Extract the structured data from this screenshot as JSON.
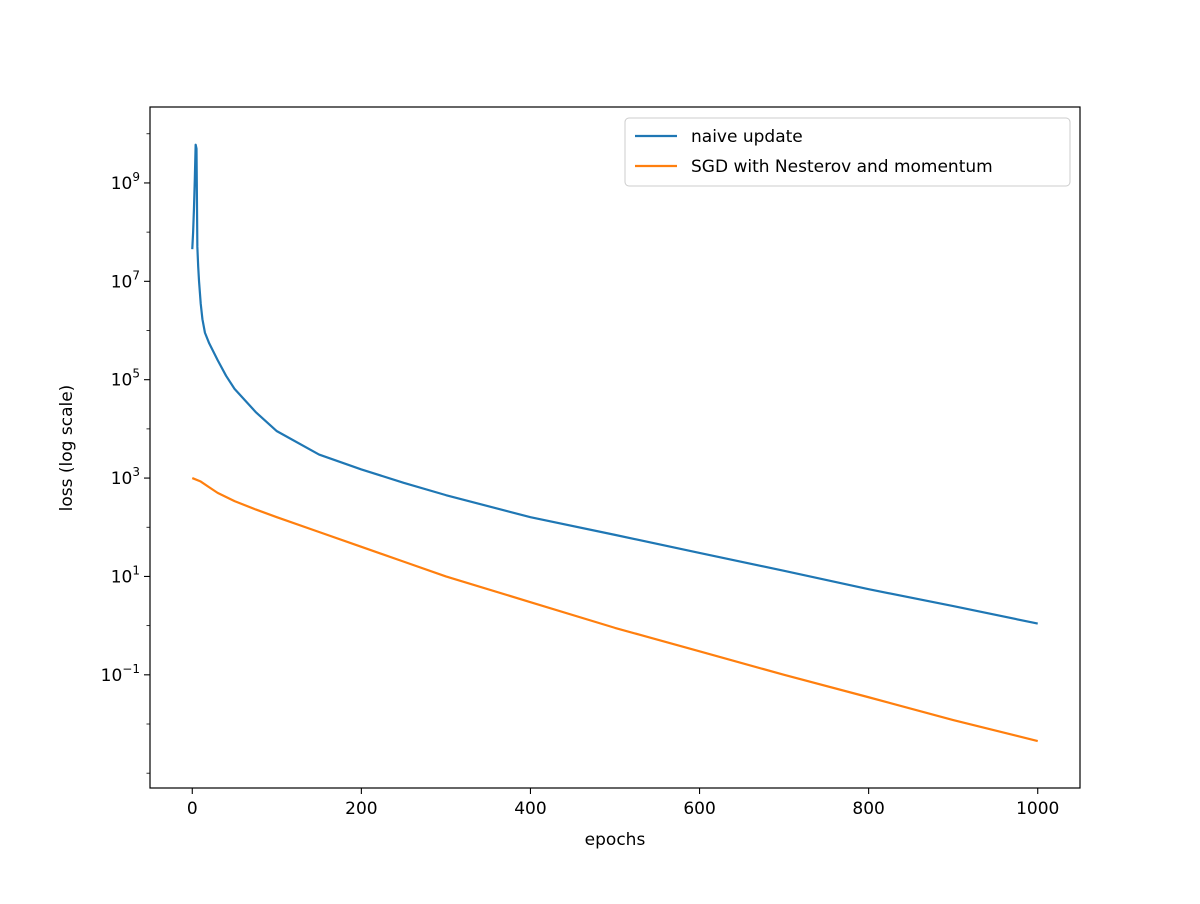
{
  "chart_data": {
    "type": "line",
    "title": "",
    "xlabel": "epochs",
    "ylabel": "loss (log scale)",
    "xlim": [
      -50,
      1050
    ],
    "ylim": [
      0.0005,
      35000000000.0
    ],
    "yscale": "log",
    "grid": false,
    "legend_position": "top-right",
    "x_ticks": [
      0,
      200,
      400,
      600,
      800,
      1000
    ],
    "x_tick_labels": [
      "0",
      "200",
      "400",
      "600",
      "800",
      "1000"
    ],
    "y_ticks": [
      {
        "value": 1000000000.0,
        "base": "10",
        "exp": "9"
      },
      {
        "value": 10000000.0,
        "base": "10",
        "exp": "7"
      },
      {
        "value": 100000.0,
        "base": "10",
        "exp": "5"
      },
      {
        "value": 1000.0,
        "base": "10",
        "exp": "3"
      },
      {
        "value": 10,
        "base": "10",
        "exp": "1"
      },
      {
        "value": 0.1,
        "base": "10",
        "exp": "−1"
      }
    ],
    "series": [
      {
        "name": "naive update",
        "color": "#1f77b4",
        "x": [
          0,
          1,
          2,
          3,
          4,
          5,
          6,
          7,
          8,
          10,
          12,
          15,
          20,
          30,
          40,
          50,
          75,
          100,
          150,
          200,
          250,
          300,
          400,
          500,
          600,
          700,
          800,
          900,
          1000
        ],
        "y": [
          45000000,
          100000000,
          300000000,
          1200000000,
          6000000000,
          5000000000,
          50000000,
          20000000,
          10000000,
          3500000,
          1700000,
          900000,
          550000,
          250000,
          120000,
          65000,
          22000,
          9000,
          3000,
          1500,
          800,
          450,
          160,
          70,
          30,
          13,
          5.5,
          2.5,
          1.1
        ]
      },
      {
        "name": "SGD with Nesterov and momentum",
        "color": "#ff7f0e",
        "x": [
          0,
          10,
          20,
          30,
          50,
          75,
          100,
          150,
          200,
          250,
          300,
          400,
          500,
          600,
          700,
          800,
          900,
          1000
        ],
        "y": [
          1000,
          850,
          650,
          500,
          340,
          230,
          160,
          80,
          40,
          20,
          10,
          3,
          0.9,
          0.3,
          0.1,
          0.035,
          0.012,
          0.0045
        ]
      }
    ]
  }
}
